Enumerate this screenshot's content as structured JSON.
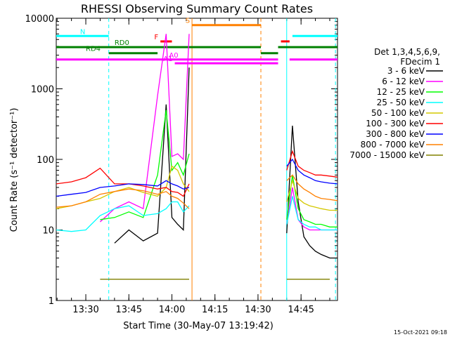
{
  "chart_data": {
    "type": "line",
    "title": "RHESSI Observing Summary Count Rates",
    "ylabel": "Count Rate (s⁻¹ detector⁻¹)",
    "xlabel": "Start Time (30-May-07 13:19:42)",
    "yscale": "log",
    "ylim": [
      1,
      10000
    ],
    "xlim": [
      "13:19:42",
      "14:57:42"
    ],
    "x_ticks": [
      "13:30",
      "13:45",
      "14:00",
      "14:15",
      "14:30",
      "14:45"
    ],
    "y_ticks": [
      "1",
      "10",
      "100",
      "1000",
      "10000"
    ],
    "footer": "15-Oct-2021 09:18",
    "legend": {
      "header": [
        "Det 1,3,4,5,6,9,",
        "FDecim 1"
      ],
      "placement": "right"
    },
    "flags": [
      {
        "label": "N",
        "color": "#00ffff",
        "y": 5600,
        "segments": [
          [
            "13:19:42",
            "13:38"
          ],
          [
            "14:42",
            "14:57:42"
          ]
        ]
      },
      {
        "label": "RD0",
        "color": "#008000",
        "y": 3900,
        "segments": [
          [
            "13:19:42",
            "14:31"
          ],
          [
            "14:37",
            "14:57:42"
          ]
        ]
      },
      {
        "label": "RD4",
        "color": "#008000",
        "y": 3200,
        "segments": [
          [
            "13:38",
            "13:55"
          ],
          [
            "14:31",
            "14:37"
          ]
        ]
      },
      {
        "label": "F",
        "color": "#ff0000",
        "y": 4700,
        "segments": [
          [
            "13:56",
            "14:00"
          ],
          [
            "14:38",
            "14:41"
          ]
        ]
      },
      {
        "label": "S",
        "color": "#ff8000",
        "y": 8000,
        "segments": [
          [
            "14:07",
            "14:31"
          ]
        ]
      },
      {
        "label": "A0",
        "color": "#ff00ff",
        "y": 2600,
        "segments": [
          [
            "13:19:42",
            "14:37"
          ],
          [
            "14:41",
            "14:57:42"
          ]
        ]
      },
      {
        "label": "A1",
        "color": "#ff00ff",
        "y": 2300,
        "segments": [
          [
            "14:01",
            "14:37"
          ]
        ]
      }
    ],
    "markers": [
      {
        "color": "#00ffff",
        "style": "dashed",
        "x": [
          "13:38",
          "14:57"
        ]
      },
      {
        "color": "#ff8000",
        "style": "dashed",
        "x": [
          "14:31"
        ]
      },
      {
        "color": "#00ffff",
        "style": "solid",
        "x": [
          "14:40"
        ]
      },
      {
        "color": "#ff8000",
        "style": "solid",
        "x": [
          "14:07"
        ]
      }
    ],
    "series": [
      {
        "name": "3 - 6 keV",
        "color": "#000000",
        "x": [
          "13:19:42",
          "13:25",
          "13:30",
          "13:35",
          "13:40",
          "13:45",
          "13:50",
          "13:55",
          "13:58",
          "14:00",
          "14:02",
          "14:04",
          "14:06",
          "14:08",
          "14:36",
          "14:40",
          "14:42",
          "14:44",
          "14:46",
          "14:48",
          "14:50",
          "14:52",
          "14:55",
          "14:57:42"
        ],
        "values": [
          null,
          null,
          null,
          null,
          6.5,
          10,
          7,
          9,
          600,
          15,
          12,
          10,
          2000,
          null,
          null,
          9,
          300,
          25,
          8,
          6,
          5,
          4.5,
          4,
          4
        ]
      },
      {
        "name": "6 - 12 keV",
        "color": "#ff00ff",
        "x": [
          "13:19:42",
          "13:25",
          "13:30",
          "13:35",
          "13:40",
          "13:45",
          "13:50",
          "13:55",
          "13:58",
          "14:00",
          "14:02",
          "14:04",
          "14:06",
          "14:08",
          "14:36",
          "14:40",
          "14:42",
          "14:44",
          "14:46",
          "14:48",
          "14:50",
          "14:52",
          "14:55",
          "14:57:42"
        ],
        "values": [
          null,
          null,
          null,
          13,
          20,
          25,
          20,
          800,
          6000,
          110,
          120,
          100,
          6000,
          null,
          null,
          12,
          40,
          14,
          11,
          10,
          10,
          10,
          10,
          10
        ]
      },
      {
        "name": "12 - 25 keV",
        "color": "#00ff00",
        "x": [
          "13:19:42",
          "13:25",
          "13:30",
          "13:35",
          "13:40",
          "13:45",
          "13:50",
          "13:55",
          "13:58",
          "14:00",
          "14:02",
          "14:04",
          "14:06",
          "14:08",
          "14:36",
          "14:40",
          "14:42",
          "14:44",
          "14:46",
          "14:48",
          "14:50",
          "14:52",
          "14:55",
          "14:57:42"
        ],
        "values": [
          null,
          null,
          null,
          14,
          15,
          18,
          15,
          60,
          500,
          70,
          90,
          60,
          120,
          null,
          null,
          14,
          60,
          20,
          14,
          13,
          12,
          12,
          11,
          11
        ]
      },
      {
        "name": "25 - 50 keV",
        "color": "#00ffff",
        "x": [
          "13:19:42",
          "13:25",
          "13:30",
          "13:35",
          "13:40",
          "13:45",
          "13:50",
          "13:55",
          "13:58",
          "14:00",
          "14:02",
          "14:04",
          "14:06",
          "14:08",
          "14:36",
          "14:40",
          "14:42",
          "14:44",
          "14:46",
          "14:48",
          "14:50",
          "14:52",
          "14:55",
          "14:57:42"
        ],
        "values": [
          10,
          9.5,
          10,
          16,
          20,
          22,
          16,
          17,
          20,
          25,
          25,
          18,
          22,
          null,
          null,
          12,
          30,
          14,
          12,
          11,
          11,
          10,
          10,
          10
        ]
      },
      {
        "name": "50 - 100 keV",
        "color": "#d4c800",
        "x": [
          "13:19:42",
          "13:25",
          "13:30",
          "13:35",
          "13:40",
          "13:45",
          "13:50",
          "13:55",
          "13:58",
          "14:00",
          "14:02",
          "14:04",
          "14:06",
          "14:08",
          "14:36",
          "14:40",
          "14:42",
          "14:44",
          "14:46",
          "14:48",
          "14:50",
          "14:52",
          "14:55",
          "14:57:42"
        ],
        "values": [
          20,
          22,
          25,
          28,
          35,
          40,
          34,
          30,
          40,
          80,
          70,
          45,
          35,
          null,
          null,
          25,
          50,
          28,
          24,
          22,
          21,
          20,
          19,
          19
        ]
      },
      {
        "name": "100 - 300 keV",
        "color": "#ff0000",
        "x": [
          "13:19:42",
          "13:25",
          "13:30",
          "13:35",
          "13:40",
          "13:45",
          "13:50",
          "13:55",
          "13:58",
          "14:00",
          "14:02",
          "14:04",
          "14:06",
          "14:08",
          "14:36",
          "14:40",
          "14:42",
          "14:44",
          "14:46",
          "14:48",
          "14:50",
          "14:52",
          "14:55",
          "14:57:42"
        ],
        "values": [
          45,
          48,
          55,
          75,
          45,
          45,
          42,
          38,
          40,
          35,
          34,
          30,
          45,
          null,
          null,
          70,
          130,
          80,
          70,
          65,
          60,
          60,
          58,
          56
        ]
      },
      {
        "name": "300 - 800 keV",
        "color": "#0000ff",
        "x": [
          "13:19:42",
          "13:25",
          "13:30",
          "13:35",
          "13:40",
          "13:45",
          "13:50",
          "13:55",
          "13:58",
          "14:00",
          "14:02",
          "14:04",
          "14:06",
          "14:08",
          "14:36",
          "14:40",
          "14:42",
          "14:44",
          "14:46",
          "14:48",
          "14:50",
          "14:52",
          "14:55",
          "14:57:42"
        ],
        "values": [
          30,
          32,
          34,
          40,
          42,
          45,
          44,
          42,
          50,
          45,
          42,
          38,
          40,
          null,
          null,
          80,
          100,
          70,
          60,
          55,
          50,
          48,
          46,
          45
        ]
      },
      {
        "name": "800 - 7000 keV",
        "color": "#ff8000",
        "x": [
          "13:19:42",
          "13:25",
          "13:30",
          "13:35",
          "13:40",
          "13:45",
          "13:50",
          "13:55",
          "13:58",
          "14:00",
          "14:02",
          "14:04",
          "14:06",
          "14:08",
          "14:36",
          "14:40",
          "14:42",
          "14:44",
          "14:46",
          "14:48",
          "14:50",
          "14:52",
          "14:55",
          "14:57:42"
        ],
        "values": [
          21,
          22,
          25,
          32,
          35,
          38,
          36,
          32,
          35,
          30,
          28,
          24,
          20,
          null,
          null,
          50,
          60,
          45,
          38,
          34,
          30,
          28,
          27,
          26
        ]
      },
      {
        "name": "7000 - 15000 keV",
        "color": "#808000",
        "x": [
          "13:19:42",
          "13:25",
          "13:30",
          "13:35",
          "13:40",
          "13:45",
          "13:50",
          "13:55",
          "13:58",
          "14:00",
          "14:02",
          "14:04",
          "14:06",
          "14:08",
          "14:36",
          "14:40",
          "14:42",
          "14:44",
          "14:46",
          "14:48",
          "14:50",
          "14:52",
          "14:55",
          "14:57:42"
        ],
        "values": [
          null,
          null,
          null,
          2,
          2,
          2,
          2,
          2,
          2,
          2,
          2,
          2,
          2,
          null,
          null,
          2,
          2,
          2,
          2,
          2,
          2,
          2,
          2,
          null
        ]
      }
    ]
  }
}
